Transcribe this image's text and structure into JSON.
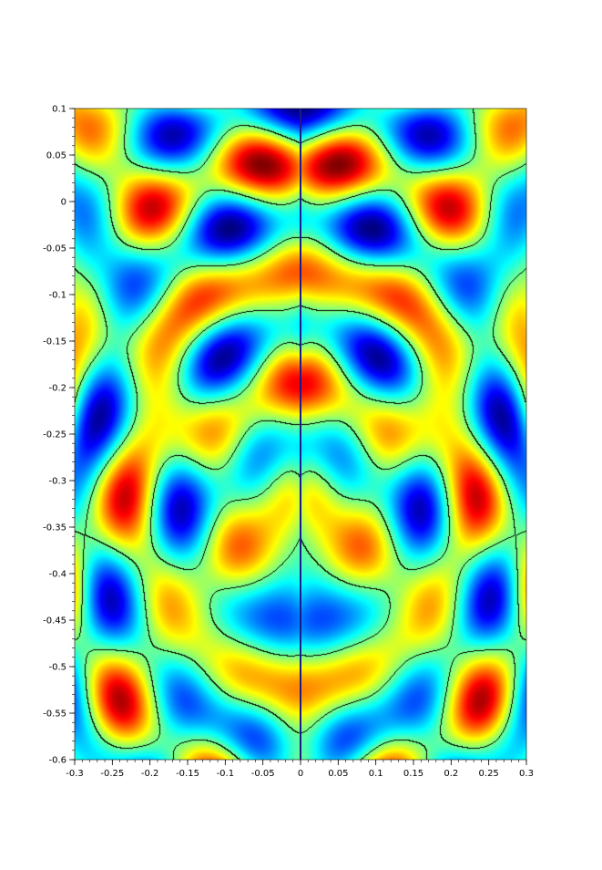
{
  "chart_data": {
    "type": "heatmap",
    "title": "",
    "xlabel": "",
    "ylabel": "",
    "xlim": [
      -0.3,
      0.3
    ],
    "ylim": [
      -0.6,
      0.1
    ],
    "x_ticks": [
      -0.3,
      -0.25,
      -0.2,
      -0.15,
      -0.1,
      -0.05,
      0,
      0.05,
      0.1,
      0.15,
      0.2,
      0.25,
      0.3
    ],
    "x_tick_labels": [
      "-0.3",
      "-0.25",
      "-0.2",
      "-0.15",
      "-0.1",
      "-0.05",
      "0",
      "0.05",
      "0.1",
      "0.15",
      "0.2",
      "0.25",
      "0.3"
    ],
    "y_ticks": [
      0.1,
      0.05,
      0,
      -0.05,
      -0.1,
      -0.15,
      -0.2,
      -0.25,
      -0.3,
      -0.35,
      -0.4,
      -0.45,
      -0.5,
      -0.55,
      -0.6
    ],
    "y_tick_labels": [
      "0.1",
      "0.05",
      "0",
      "-0.05",
      "-0.1",
      "-0.15",
      "-0.2",
      "-0.25",
      "-0.3",
      "-0.35",
      "-0.4",
      "-0.45",
      "-0.5",
      "-0.55",
      "-0.6"
    ],
    "colormap": "jet",
    "colorbar": false,
    "legend": "none",
    "grid": false,
    "contour_level": 0,
    "contour_color": "#000000",
    "symmetry_axis_x": 0,
    "symmetry_axis_color": "#1a1a8c"
  }
}
